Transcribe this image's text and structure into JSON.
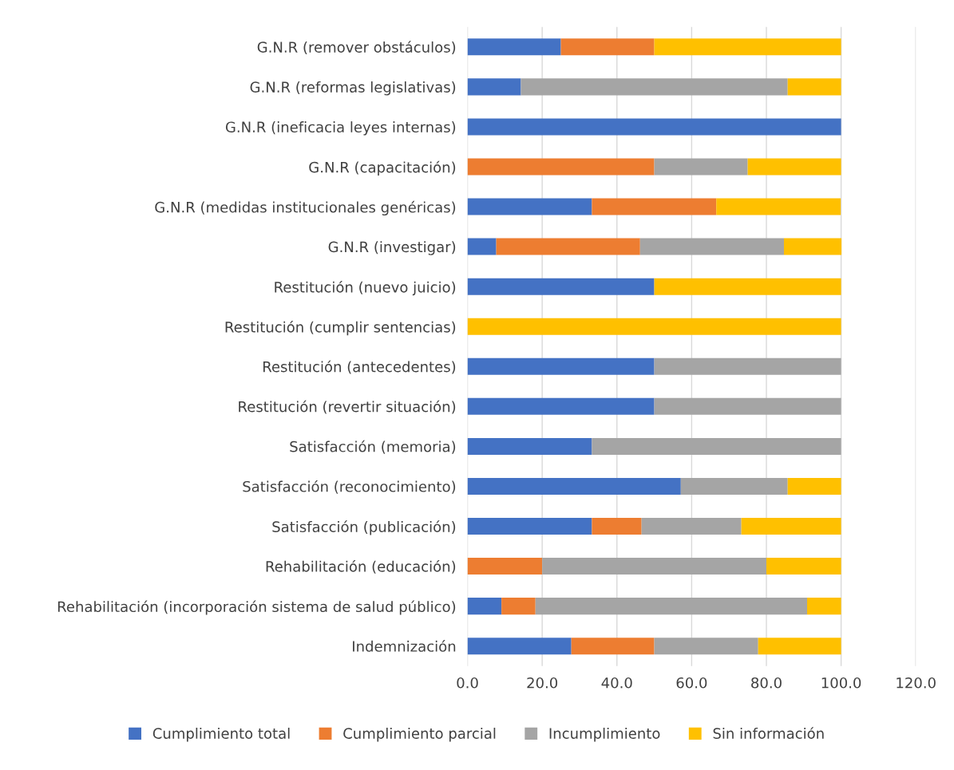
{
  "chart_data": {
    "type": "bar",
    "orientation": "horizontal",
    "stacked": true,
    "categories": [
      "G.N.R (remover obstáculos)",
      "G.N.R (reformas legislativas)",
      "G.N.R (ineficacia leyes internas)",
      "G.N.R (capacitación)",
      "G.N.R (medidas institucionales genéricas)",
      "G.N.R (investigar)",
      "Restitución (nuevo juicio)",
      "Restitución (cumplir sentencias)",
      "Restitución (antecedentes)",
      "Restitución (revertir situación)",
      "Satisfacción (memoria)",
      "Satisfacción (reconocimiento)",
      "Satisfacción (publicación)",
      "Rehabilitación (educación)",
      "Rehabilitación (incorporación sistema de salud público)",
      "Indemnización"
    ],
    "series": [
      {
        "name": "Cumplimiento total",
        "color": "#4472c4",
        "values": [
          25,
          14.3,
          100,
          0,
          33.3,
          7.7,
          50,
          0,
          50,
          50,
          33.3,
          57.1,
          33.3,
          0,
          9.1,
          27.8
        ]
      },
      {
        "name": "Cumplimiento parcial",
        "color": "#ed7d31",
        "values": [
          25,
          0,
          0,
          50,
          33.3,
          38.5,
          0,
          0,
          0,
          0,
          0,
          0,
          13.3,
          20,
          9.1,
          22.2
        ]
      },
      {
        "name": "Incumplimiento",
        "color": "#a5a5a5",
        "values": [
          0,
          71.4,
          0,
          25,
          0,
          38.5,
          0,
          0,
          50,
          50,
          66.7,
          28.6,
          26.7,
          60,
          72.7,
          27.8
        ]
      },
      {
        "name": "Sin información",
        "color": "#ffc000",
        "values": [
          50,
          14.3,
          0,
          25,
          33.3,
          15.4,
          50,
          100,
          0,
          0,
          0,
          14.3,
          26.7,
          20,
          9.1,
          22.2
        ]
      }
    ],
    "xlim": [
      0,
      120
    ],
    "xticks": [
      {
        "value": 0,
        "label": "0.0"
      },
      {
        "value": 20,
        "label": "20.0"
      },
      {
        "value": 40,
        "label": "40.0"
      },
      {
        "value": 60,
        "label": "60.0"
      },
      {
        "value": 80,
        "label": "80.0"
      },
      {
        "value": 100,
        "label": "100.0"
      },
      {
        "value": 120,
        "label": "120.0"
      }
    ],
    "grid": "x",
    "legend": "bottom"
  }
}
